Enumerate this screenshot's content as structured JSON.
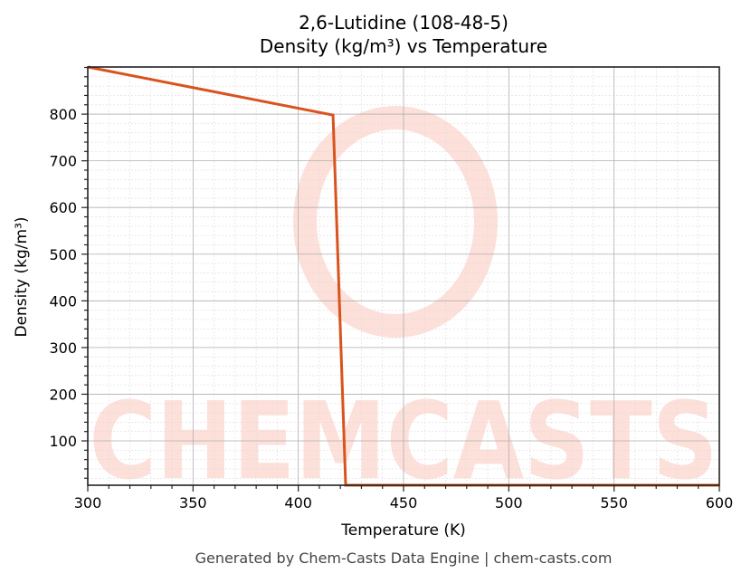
{
  "title": {
    "line1": "2,6-Lutidine (108-48-5)",
    "line2": "Density (kg/m³) vs Temperature"
  },
  "footer": "Generated by Chem-Casts Data Engine | chem-casts.com",
  "watermark": "CHEMCASTS",
  "colors": {
    "line": "#d9531e",
    "watermark": "#fde0d9",
    "grid_major": "#b0b0b0",
    "grid_minor": "#dcdcdc",
    "axes": "#222222"
  },
  "chart_data": {
    "type": "line",
    "title": "2,6-Lutidine (108-48-5)\nDensity (kg/m³) vs Temperature",
    "xlabel": "Temperature (K)",
    "ylabel": "Density (kg/m³)",
    "xlim": [
      300,
      600
    ],
    "ylim": [
      5,
      901
    ],
    "xticks": [
      300,
      350,
      400,
      450,
      500,
      550,
      600
    ],
    "yticks": [
      100,
      200,
      300,
      400,
      500,
      600,
      700,
      800
    ],
    "grid": true,
    "minor_grid": true,
    "legend": null,
    "series": [
      {
        "name": "Density",
        "x": [
          300,
          416.5,
          422.5,
          600
        ],
        "y": [
          901,
          798,
          5,
          5
        ]
      }
    ]
  }
}
